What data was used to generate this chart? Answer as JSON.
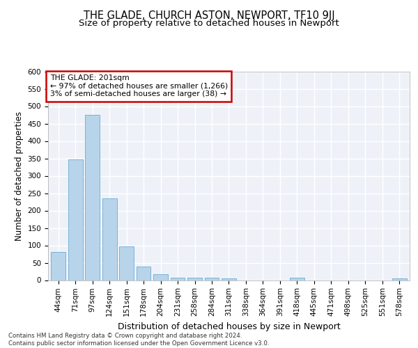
{
  "title": "THE GLADE, CHURCH ASTON, NEWPORT, TF10 9JJ",
  "subtitle": "Size of property relative to detached houses in Newport",
  "xlabel": "Distribution of detached houses by size in Newport",
  "ylabel": "Number of detached properties",
  "categories": [
    "44sqm",
    "71sqm",
    "97sqm",
    "124sqm",
    "151sqm",
    "178sqm",
    "204sqm",
    "231sqm",
    "258sqm",
    "284sqm",
    "311sqm",
    "338sqm",
    "364sqm",
    "391sqm",
    "418sqm",
    "445sqm",
    "471sqm",
    "498sqm",
    "525sqm",
    "551sqm",
    "578sqm"
  ],
  "values": [
    82,
    348,
    475,
    235,
    97,
    40,
    18,
    8,
    8,
    8,
    5,
    0,
    0,
    0,
    8,
    0,
    0,
    0,
    0,
    0,
    5
  ],
  "bar_color": "#b8d4ea",
  "bar_edge_color": "#6aaad4",
  "annotation_box_text": "THE GLADE: 201sqm\n← 97% of detached houses are smaller (1,266)\n3% of semi-detached houses are larger (38) →",
  "annotation_box_color": "#ffffff",
  "annotation_box_edgecolor": "#cc0000",
  "ylim": [
    0,
    600
  ],
  "yticks": [
    0,
    50,
    100,
    150,
    200,
    250,
    300,
    350,
    400,
    450,
    500,
    550,
    600
  ],
  "background_color": "#eef2f8",
  "grid_color": "#ffffff",
  "footer_line1": "Contains HM Land Registry data © Crown copyright and database right 2024.",
  "footer_line2": "Contains public sector information licensed under the Open Government Licence v3.0.",
  "title_fontsize": 10.5,
  "subtitle_fontsize": 9.5,
  "axis_label_fontsize": 8.5,
  "tick_fontsize": 7.5
}
